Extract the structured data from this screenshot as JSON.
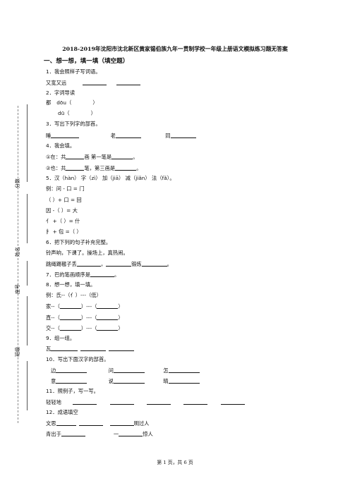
{
  "title": "2018-2019年沈阳市沈北新区黄家锡伯族九年一贯制学校一年级上册语文模拟练习题无答案",
  "section1": "一、想一想，填一填（填空题）",
  "side_labels": {
    "score": "分数",
    "name": "姓名",
    "seat": "座号",
    "class": "班级"
  },
  "q1": {
    "num": "1．",
    "text": "我会照样子写词语。",
    "example": "又宽又远"
  },
  "q2": {
    "num": "2．",
    "text": "字词导读",
    "row1_char": "都",
    "row1_pinyin": "dōu（",
    "row2_pinyin": "dū（",
    "close": "）"
  },
  "q3": {
    "num": "3．",
    "text": "写出下列字的部首。",
    "c1": "睡",
    "c2": "老",
    "c3": "同"
  },
  "q4": {
    "num": "4．",
    "text": "我会填。",
    "l1a": "①在：共",
    "l1b": "画  第一笔是",
    "l1c": "。",
    "l2a": "②也：共",
    "l2b": "笔，第三画是",
    "l2c": "。"
  },
  "q5": {
    "num": "5．",
    "text": "汉（hàn） 字（zì） 加（jiā） 减（jiǎn） 法（fǎ）。",
    "example": "例：问 - 口 = 门",
    "r1": "（          ）+ 口 = 回",
    "r2": "因 -（          ）= 大",
    "r3": "亻 +（          ）= 什",
    "r4": "扌 + 包 =（          ）"
  },
  "q6": {
    "num": "6．",
    "text": "把下列的句子补充完整。",
    "l1": "铃声响，下课了。操场上，真热闹。",
    "l2a": "跳绳踢毽子丢",
    "l2b": "，",
    "l2c": "锻炼",
    "l2d": "。"
  },
  "q7": {
    "num": "7．",
    "text": "巴的笔画顺序是",
    "end": "。"
  },
  "q8": {
    "num": "8．",
    "text": "想一想，填一填。",
    "example": "例：氐--（亻）---（低）",
    "r1": "家--（",
    "r2": "直--（",
    "r3": "交--（",
    "mid": "）---（",
    "close": "）"
  },
  "q9": {
    "num": "9．",
    "text": "组一组。",
    "c1": "瓦"
  },
  "q10": {
    "num": "10．",
    "text": "写出下面汉字的部首。",
    "a": "边",
    "b": "问",
    "c": "怎",
    "d": "意",
    "e": "说",
    "f": "晴"
  },
  "q11": {
    "num": "11．",
    "text": "照例子，写一写。",
    "example": "轻轻地"
  },
  "q12": {
    "num": "12．",
    "text": "成语填空",
    "l1a": "文思",
    "l1b": "明过人",
    "l2a": "青出于",
    "l2b": "一",
    "l2c": "惊人"
  },
  "footer": "第 1 页，共 6 页"
}
